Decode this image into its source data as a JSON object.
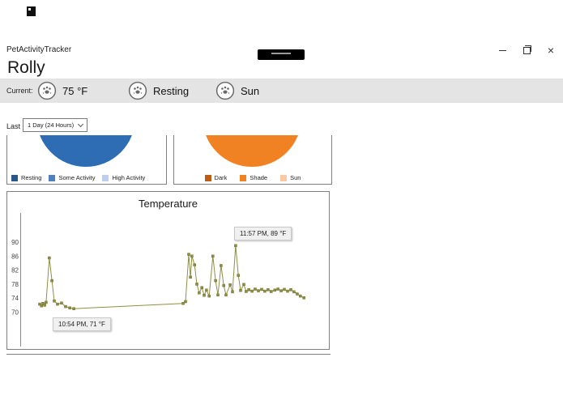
{
  "window": {
    "app_title": "PetActivityTracker",
    "controls": {
      "minimize_icon": "minimize-icon",
      "restore_icon": "restore-icon",
      "close_icon": "close-icon",
      "close_glyph": "×"
    },
    "center_widget_icon": "black-pill-indicator"
  },
  "desktop": {
    "shortcut_icon": "black-app-shortcut-icon"
  },
  "page": {
    "pet_name": "Rolly"
  },
  "current_bar": {
    "label": "Current:",
    "stats": [
      {
        "name": "temperature",
        "icon": "paw-icon",
        "value": "75 °F"
      },
      {
        "name": "activity",
        "icon": "paw-icon",
        "value": "Resting"
      },
      {
        "name": "light",
        "icon": "paw-icon",
        "value": "Sun"
      }
    ]
  },
  "filter": {
    "label": "Last",
    "selected": "1 Day (24 Hours)",
    "chevron_icon": "chevron-down-icon"
  },
  "activity_panel": {
    "pie_color": "#2e6db4",
    "legend": [
      {
        "label": "Resting",
        "color": "#2a5784"
      },
      {
        "label": "Some Activity",
        "color": "#4f81bd"
      },
      {
        "label": "High Activity",
        "color": "#bdd0e9"
      }
    ]
  },
  "light_panel": {
    "pie_color": "#f08223",
    "legend": [
      {
        "label": "Dark",
        "color": "#bb5d17"
      },
      {
        "label": "Shade",
        "color": "#f08223"
      },
      {
        "label": "Sun",
        "color": "#f7c9a4"
      }
    ]
  },
  "temperature_panel": {
    "title": "Temperature",
    "y_ticks": [
      90,
      86,
      82,
      78,
      74,
      70
    ],
    "line_color": "#8f8f42",
    "marker_color": "#6e6e2f",
    "tooltip_top": "11:57 PM, 89 °F",
    "tooltip_bottom": "10:54 PM, 71 °F"
  },
  "chart_data": [
    {
      "type": "pie",
      "categories": [
        "Resting",
        "Some Activity",
        "High Activity"
      ],
      "values": null,
      "colors": [
        "#2a5784",
        "#4f81bd",
        "#bdd0e9"
      ],
      "legend_position": "bottom",
      "visible": "bottom half of pie only; visible slice color #2e6db4"
    },
    {
      "type": "pie",
      "categories": [
        "Dark",
        "Shade",
        "Sun"
      ],
      "values": null,
      "colors": [
        "#bb5d17",
        "#f08223",
        "#f7c9a4"
      ],
      "legend_position": "bottom",
      "visible": "bottom half of pie only; visible slice color #f08223"
    },
    {
      "type": "line",
      "title": "Temperature",
      "xlabel": "",
      "ylabel": "",
      "x_unit": "fraction of 24-hour window (axis unlabeled)",
      "y_ticks": [
        90,
        86,
        82,
        78,
        74,
        70
      ],
      "ylim": [
        68,
        92
      ],
      "annotations": [
        "11:57 PM, 89 °F",
        "10:54 PM, 71 °F"
      ],
      "points": [
        [
          0.05,
          72.3
        ],
        [
          0.056,
          71.8
        ],
        [
          0.061,
          72.5
        ],
        [
          0.067,
          72.0
        ],
        [
          0.072,
          72.8
        ],
        [
          0.083,
          85.5
        ],
        [
          0.092,
          79.0
        ],
        [
          0.1,
          73.2
        ],
        [
          0.111,
          72.3
        ],
        [
          0.125,
          72.6
        ],
        [
          0.139,
          71.6
        ],
        [
          0.153,
          71.2
        ],
        [
          0.167,
          71.0
        ],
        [
          0.542,
          72.5
        ],
        [
          0.55,
          73.0
        ],
        [
          0.561,
          86.5
        ],
        [
          0.567,
          80.0
        ],
        [
          0.572,
          86.0
        ],
        [
          0.581,
          83.5
        ],
        [
          0.589,
          78.0
        ],
        [
          0.597,
          75.5
        ],
        [
          0.606,
          77.0
        ],
        [
          0.614,
          74.8
        ],
        [
          0.622,
          76.3
        ],
        [
          0.631,
          74.6
        ],
        [
          0.644,
          86.0
        ],
        [
          0.653,
          79.0
        ],
        [
          0.661,
          74.9
        ],
        [
          0.672,
          83.3
        ],
        [
          0.681,
          77.6
        ],
        [
          0.689,
          74.9
        ],
        [
          0.703,
          77.8
        ],
        [
          0.711,
          75.8
        ],
        [
          0.722,
          89.0
        ],
        [
          0.731,
          80.5
        ],
        [
          0.739,
          76.2
        ],
        [
          0.75,
          77.9
        ],
        [
          0.758,
          75.9
        ],
        [
          0.767,
          76.4
        ],
        [
          0.778,
          76.0
        ],
        [
          0.789,
          76.6
        ],
        [
          0.8,
          76.1
        ],
        [
          0.811,
          76.5
        ],
        [
          0.822,
          76.0
        ],
        [
          0.833,
          76.4
        ],
        [
          0.844,
          75.9
        ],
        [
          0.856,
          76.3
        ],
        [
          0.867,
          76.6
        ],
        [
          0.878,
          76.1
        ],
        [
          0.889,
          76.5
        ],
        [
          0.9,
          76.0
        ],
        [
          0.911,
          76.4
        ],
        [
          0.922,
          75.8
        ],
        [
          0.933,
          75.2
        ],
        [
          0.944,
          74.6
        ],
        [
          0.956,
          74.1
        ]
      ]
    }
  ]
}
